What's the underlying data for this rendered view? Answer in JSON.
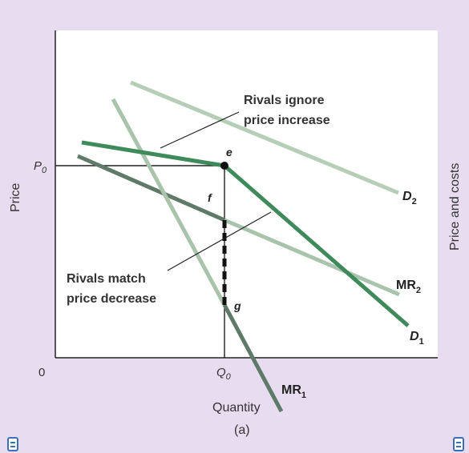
{
  "labels": {
    "price": "Price",
    "price_costs": "Price and costs",
    "quantity": "Quantity",
    "p0_main": "P",
    "p0_sub": "0",
    "q0_main": "Q",
    "q0_sub": "0",
    "origin": "0",
    "panel": "(a)"
  },
  "annotations": {
    "ignore_line1": "Rivals ignore",
    "ignore_line2": "price increase",
    "match_line1": "Rivals match",
    "match_line2": "price decrease"
  },
  "points": {
    "e": "e",
    "f": "f",
    "g": "g"
  },
  "curves": {
    "d2_main": "D",
    "d2_sub": "2",
    "d1_main": "D",
    "d1_sub": "1",
    "mr2_main": "MR",
    "mr2_sub": "2",
    "mr1_main": "MR",
    "mr1_sub": "1"
  },
  "icons": {
    "left": "document-icon",
    "right": "document-icon"
  },
  "colors": {
    "background": "#e8ddf0",
    "plot_bg": "#ffffff",
    "d1": "#3f8a5a",
    "d2": "#b6cdb7",
    "mr1": "#5f7a68",
    "mr2": "#a9c3ad",
    "mr2_kinked": "#5f7a68",
    "marker": "#111111"
  }
}
